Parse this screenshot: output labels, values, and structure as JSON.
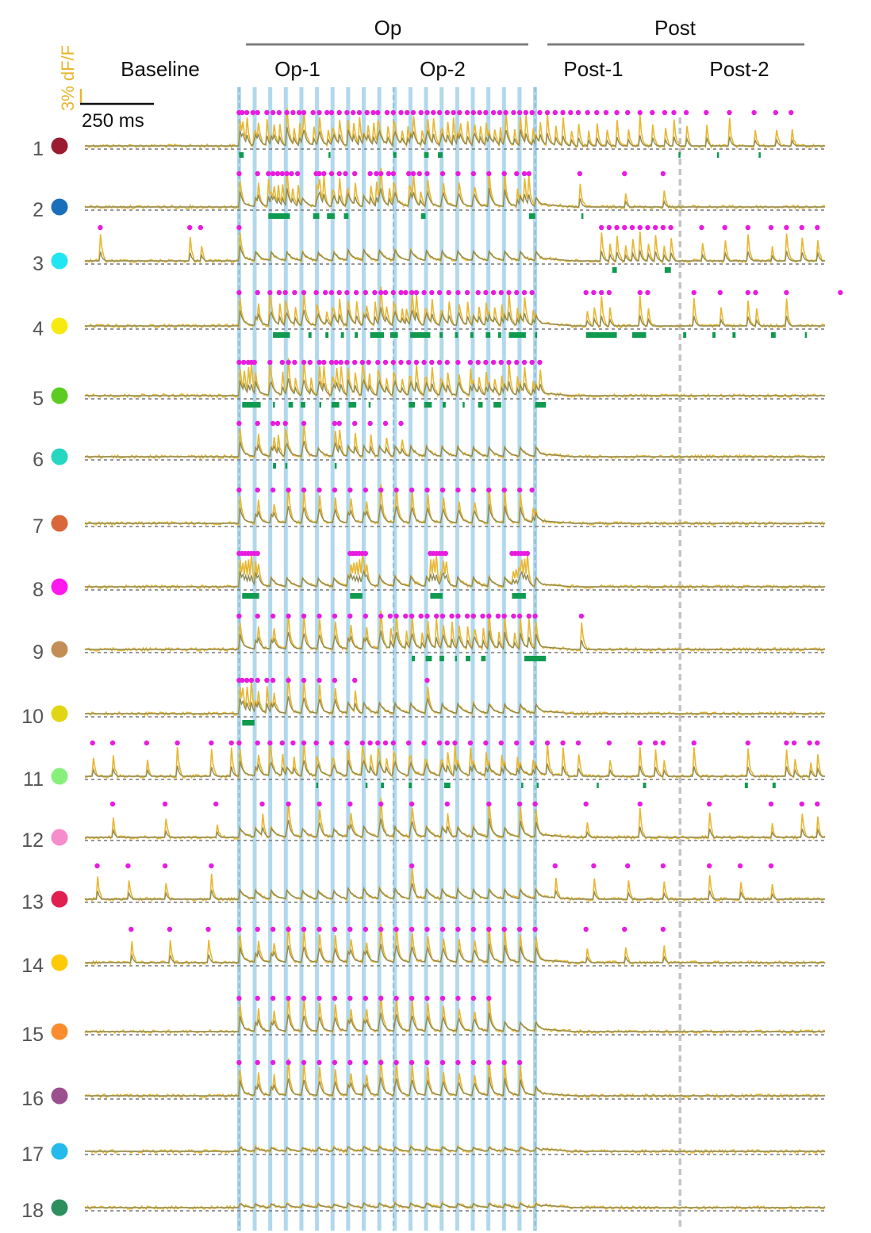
{
  "chart_data": {
    "type": "line",
    "colors": {
      "trace_raw": "#e8b630",
      "trace_smooth": "#8e8a55",
      "spike": "#e81ce0",
      "burst": "#0f9a50",
      "stim": "#a9d4ea",
      "baseline": "#777777",
      "divider": "#c4c4c4",
      "scale_y": "#e8b630"
    },
    "header": {
      "op_label": "Op",
      "post_label": "Post",
      "epochs": [
        "Baseline",
        "Op-1",
        "Op-2",
        "Post-1",
        "Post-2"
      ]
    },
    "scale_bar": {
      "y_label": "3% dF/F",
      "x_label": "250 ms"
    },
    "time_range": [
      0,
      4.8
    ],
    "stim": {
      "start": 1.0,
      "end": 2.92,
      "n_pulses": 20
    },
    "epoch_bounds": {
      "op_split": 2.0,
      "post_split": 3.86
    },
    "neurons": [
      {
        "id": "1",
        "color": "#9b1b30",
        "spikes": [
          1.0,
          1.02,
          1.05,
          1.09,
          1.12,
          1.18,
          1.22,
          1.26,
          1.31,
          1.35,
          1.39,
          1.42,
          1.48,
          1.52,
          1.57,
          1.6,
          1.65,
          1.7,
          1.74,
          1.78,
          1.83,
          1.87,
          1.9,
          1.96,
          2.0,
          2.05,
          2.09,
          2.13,
          2.18,
          2.22,
          2.26,
          2.3,
          2.35,
          2.39,
          2.43,
          2.48,
          2.52,
          2.56,
          2.6,
          2.65,
          2.69,
          2.73,
          2.78,
          2.82,
          2.86,
          2.9,
          2.95,
          3.0,
          3.05,
          3.1,
          3.15,
          3.2,
          3.26,
          3.32,
          3.38,
          3.45,
          3.52,
          3.6,
          3.68,
          3.76,
          3.82,
          3.9,
          4.03,
          4.18,
          4.34,
          4.48,
          4.58
        ],
        "bursts": [
          [
            1.0,
            1.03
          ],
          [
            1.58,
            1.59
          ],
          [
            2.0,
            2.02
          ],
          [
            2.2,
            2.23
          ],
          [
            2.29,
            2.32
          ],
          [
            3.85,
            3.86
          ],
          [
            4.1,
            4.11
          ],
          [
            4.37,
            4.38
          ]
        ]
      },
      {
        "id": "2",
        "color": "#1a6fba",
        "spikes": [
          1.0,
          1.12,
          1.19,
          1.22,
          1.25,
          1.28,
          1.31,
          1.34,
          1.38,
          1.5,
          1.52,
          1.55,
          1.6,
          1.65,
          1.69,
          1.75,
          1.85,
          1.89,
          1.92,
          1.97,
          2.0,
          2.1,
          2.13,
          2.17,
          2.22,
          2.32,
          2.42,
          2.52,
          2.62,
          2.72,
          2.8,
          2.85,
          2.88,
          3.21,
          3.5,
          3.75
        ],
        "bursts": [
          [
            1.19,
            1.33
          ],
          [
            1.48,
            1.52
          ],
          [
            1.57,
            1.62
          ],
          [
            1.68,
            1.71
          ],
          [
            2.18,
            2.21
          ],
          [
            2.88,
            2.92
          ],
          [
            3.22,
            3.23
          ]
        ]
      },
      {
        "id": "3",
        "color": "#22e5f2",
        "spikes": [
          0.1,
          0.68,
          0.75,
          1.0,
          3.35,
          3.4,
          3.45,
          3.5,
          3.55,
          3.6,
          3.65,
          3.7,
          3.75,
          3.8,
          4.0,
          4.15,
          4.3,
          4.45,
          4.55,
          4.65,
          4.75
        ],
        "bursts": [
          [
            3.42,
            3.45
          ],
          [
            3.76,
            3.8
          ]
        ]
      },
      {
        "id": "4",
        "color": "#f6ea10",
        "spikes": [
          1.0,
          1.12,
          1.2,
          1.26,
          1.3,
          1.36,
          1.42,
          1.5,
          1.56,
          1.6,
          1.65,
          1.7,
          1.76,
          1.82,
          1.88,
          1.92,
          1.95,
          2.0,
          2.05,
          2.08,
          2.12,
          2.15,
          2.2,
          2.25,
          2.3,
          2.36,
          2.42,
          2.48,
          2.55,
          2.6,
          2.65,
          2.7,
          2.75,
          2.8,
          2.85,
          2.9,
          3.25,
          3.3,
          3.35,
          3.4,
          3.6,
          3.65,
          3.95,
          4.12,
          4.3,
          4.35,
          4.55,
          4.9
        ],
        "bursts": [
          [
            1.22,
            1.33
          ],
          [
            1.45,
            1.47
          ],
          [
            1.56,
            1.58
          ],
          [
            1.66,
            1.68
          ],
          [
            1.75,
            1.77
          ],
          [
            1.85,
            1.94
          ],
          [
            1.98,
            2.03
          ],
          [
            2.11,
            2.24
          ],
          [
            2.3,
            2.32
          ],
          [
            2.4,
            2.42
          ],
          [
            2.5,
            2.52
          ],
          [
            2.6,
            2.63
          ],
          [
            2.68,
            2.7
          ],
          [
            2.75,
            2.86
          ],
          [
            2.92,
            2.93
          ],
          [
            3.25,
            3.45
          ],
          [
            3.55,
            3.64
          ],
          [
            3.88,
            3.9
          ],
          [
            4.07,
            4.09
          ],
          [
            4.2,
            4.22
          ],
          [
            4.45,
            4.48
          ],
          [
            4.67,
            4.68
          ]
        ]
      },
      {
        "id": "5",
        "color": "#5ccc22",
        "spikes": [
          1.0,
          1.03,
          1.06,
          1.08,
          1.1,
          1.2,
          1.28,
          1.32,
          1.36,
          1.42,
          1.46,
          1.52,
          1.55,
          1.6,
          1.63,
          1.66,
          1.7,
          1.75,
          1.8,
          1.84,
          1.9,
          1.95,
          2.0,
          2.05,
          2.1,
          2.15,
          2.2,
          2.25,
          2.3,
          2.35,
          2.42,
          2.5,
          2.55,
          2.6,
          2.65,
          2.7,
          2.75,
          2.8,
          2.85,
          2.9,
          2.95
        ],
        "bursts": [
          [
            1.02,
            1.14
          ],
          [
            1.22,
            1.23
          ],
          [
            1.32,
            1.35
          ],
          [
            1.4,
            1.43
          ],
          [
            1.52,
            1.53
          ],
          [
            1.6,
            1.65
          ],
          [
            1.71,
            1.76
          ],
          [
            1.84,
            1.85
          ],
          [
            2.1,
            2.14
          ],
          [
            2.2,
            2.25
          ],
          [
            2.32,
            2.34
          ],
          [
            2.45,
            2.46
          ],
          [
            2.55,
            2.58
          ],
          [
            2.65,
            2.7
          ],
          [
            2.92,
            2.99
          ]
        ]
      },
      {
        "id": "6",
        "color": "#25d6c0",
        "spikes": [
          1.0,
          1.12,
          1.22,
          1.25,
          1.3,
          1.42,
          1.62,
          1.65,
          1.75,
          1.85,
          1.95,
          2.05
        ],
        "bursts": [
          [
            1.22,
            1.24
          ],
          [
            1.3,
            1.31
          ],
          [
            1.62,
            1.63
          ]
        ]
      },
      {
        "id": "7",
        "color": "#d9673a",
        "spikes": [
          1.0,
          1.12,
          1.22,
          1.32,
          1.42,
          1.52,
          1.62,
          1.72,
          1.82,
          1.92,
          2.02,
          2.12,
          2.22,
          2.32,
          2.42,
          2.52,
          2.62,
          2.72,
          2.82,
          2.9
        ],
        "bursts": []
      },
      {
        "id": "8",
        "color": "#ff18ee",
        "spikes": [
          1.0,
          1.02,
          1.04,
          1.06,
          1.08,
          1.1,
          1.12,
          1.72,
          1.74,
          1.76,
          1.78,
          1.8,
          1.82,
          2.24,
          2.26,
          2.28,
          2.3,
          2.32,
          2.34,
          2.77,
          2.79,
          2.81,
          2.83,
          2.85,
          2.87
        ],
        "bursts": [
          [
            1.02,
            1.13
          ],
          [
            1.72,
            1.8
          ],
          [
            2.24,
            2.32
          ],
          [
            2.77,
            2.86
          ]
        ]
      },
      {
        "id": "9",
        "color": "#c48d58",
        "spikes": [
          1.0,
          1.12,
          1.22,
          1.32,
          1.42,
          1.52,
          1.62,
          1.72,
          1.82,
          1.92,
          1.98,
          2.02,
          2.08,
          2.12,
          2.18,
          2.22,
          2.28,
          2.32,
          2.38,
          2.42,
          2.48,
          2.52,
          2.58,
          2.62,
          2.68,
          2.72,
          2.78,
          2.82,
          2.88,
          2.92,
          3.22
        ],
        "bursts": [
          [
            2.12,
            2.14
          ],
          [
            2.21,
            2.25
          ],
          [
            2.3,
            2.33
          ],
          [
            2.4,
            2.41
          ],
          [
            2.47,
            2.5
          ],
          [
            2.57,
            2.6
          ],
          [
            2.85,
            2.99
          ]
        ]
      },
      {
        "id": "10",
        "color": "#e2d614",
        "spikes": [
          1.0,
          1.02,
          1.05,
          1.08,
          1.12,
          1.18,
          1.22,
          1.32,
          1.42,
          1.52,
          1.62,
          1.75,
          2.22
        ],
        "bursts": [
          [
            1.02,
            1.1
          ]
        ]
      },
      {
        "id": "11",
        "color": "#86f07b",
        "spikes": [
          0.05,
          0.18,
          0.4,
          0.6,
          0.82,
          0.95,
          1.0,
          1.12,
          1.2,
          1.28,
          1.35,
          1.42,
          1.5,
          1.6,
          1.7,
          1.8,
          1.85,
          1.9,
          1.95,
          2.0,
          2.1,
          2.2,
          2.3,
          2.35,
          2.4,
          2.5,
          2.6,
          2.7,
          2.8,
          2.9,
          3.0,
          3.1,
          3.2,
          3.4,
          3.6,
          3.7,
          3.75,
          3.95,
          4.3,
          4.55,
          4.6,
          4.7,
          4.75
        ],
        "bursts": [
          [
            1.5,
            1.51
          ],
          [
            1.82,
            1.83
          ],
          [
            1.92,
            1.94
          ],
          [
            2.1,
            2.12
          ],
          [
            2.33,
            2.37
          ],
          [
            2.83,
            2.84
          ],
          [
            2.93,
            2.94
          ],
          [
            3.32,
            3.33
          ],
          [
            3.62,
            3.64
          ],
          [
            4.28,
            4.3
          ],
          [
            4.46,
            4.48
          ]
        ]
      },
      {
        "id": "12",
        "color": "#f78ccd",
        "spikes": [
          0.18,
          0.52,
          0.85,
          1.15,
          1.32,
          1.52,
          1.72,
          1.92,
          2.12,
          2.35,
          2.62,
          2.82,
          2.92,
          3.25,
          3.6,
          4.05,
          4.45,
          4.65,
          4.75
        ],
        "bursts": []
      },
      {
        "id": "13",
        "color": "#e0204f",
        "spikes": [
          0.08,
          0.28,
          0.52,
          0.82,
          2.12,
          3.05,
          3.3,
          3.52,
          3.75,
          4.05,
          4.25,
          4.45
        ],
        "bursts": []
      },
      {
        "id": "14",
        "color": "#fdca08",
        "spikes": [
          0.3,
          0.55,
          0.8,
          1.0,
          1.12,
          1.22,
          1.32,
          1.42,
          1.52,
          1.62,
          1.72,
          1.82,
          1.92,
          2.02,
          2.12,
          2.22,
          2.32,
          2.42,
          2.52,
          2.62,
          2.72,
          2.82,
          2.92,
          3.25,
          3.5,
          3.75
        ],
        "bursts": []
      },
      {
        "id": "15",
        "color": "#fb8d2e",
        "spikes": [
          1.0,
          1.12,
          1.22,
          1.32,
          1.42,
          1.52,
          1.62,
          1.72,
          1.82,
          1.92,
          2.02,
          2.12,
          2.22,
          2.32,
          2.42,
          2.52,
          2.62
        ],
        "bursts": []
      },
      {
        "id": "16",
        "color": "#9b4f8e",
        "spikes": [
          1.0,
          1.12,
          1.22,
          1.32,
          1.42,
          1.52,
          1.62,
          1.72,
          1.82,
          1.92,
          2.02,
          2.12,
          2.22,
          2.32,
          2.42,
          2.52,
          2.62,
          2.72,
          2.82
        ],
        "bursts": []
      },
      {
        "id": "17",
        "color": "#25b9ec",
        "spikes": [],
        "bursts": []
      },
      {
        "id": "18",
        "color": "#2d8f5e",
        "spikes": [],
        "bursts": []
      }
    ]
  }
}
